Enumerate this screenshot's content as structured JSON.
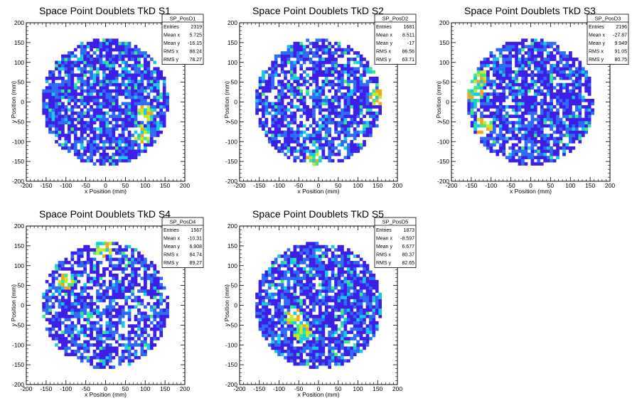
{
  "chart_data": [
    {
      "type": "heatmap",
      "title": "Space Point Doublets TkD S1",
      "xlabel": "x Position (mm)",
      "ylabel": "y Position (mm)",
      "xlim": [
        -200,
        200
      ],
      "ylim": [
        -200,
        200
      ],
      "xticks": [
        "-200",
        "-150",
        "-100",
        "-50",
        "0",
        "50",
        "100",
        "150",
        "200"
      ],
      "yticks": [
        "-200",
        "-150",
        "-100",
        "-50",
        "0",
        "50",
        "100",
        "150",
        "200"
      ],
      "radius": 160,
      "bins": 40,
      "seed": 11,
      "fill": 0.82,
      "hotspots": [
        [
          100,
          -30
        ],
        [
          90,
          -80
        ]
      ],
      "stats": {
        "name": "SP_PosD1",
        "rows": [
          [
            "Entries",
            "2319"
          ],
          [
            "Mean x",
            "5.725"
          ],
          [
            "Mean y",
            "-16.15"
          ],
          [
            "RMS x",
            "88.24"
          ],
          [
            "RMS y",
            "78.27"
          ]
        ]
      }
    },
    {
      "type": "heatmap",
      "title": "Space Point Doublets TkD S2",
      "xlabel": "x Position (mm)",
      "ylabel": "y Position (mm)",
      "xlim": [
        -200,
        200
      ],
      "ylim": [
        -200,
        200
      ],
      "xticks": [
        "-200",
        "-150",
        "-100",
        "-50",
        "0",
        "50",
        "100",
        "150",
        "200"
      ],
      "yticks": [
        "-200",
        "-150",
        "-100",
        "-50",
        "0",
        "50",
        "100",
        "150",
        "200"
      ],
      "radius": 160,
      "bins": 40,
      "seed": 23,
      "fill": 0.72,
      "hotspots": [
        [
          -10,
          -150
        ],
        [
          150,
          10
        ]
      ],
      "stats": {
        "name": "SP_PosD2",
        "rows": [
          [
            "Entries",
            "1681"
          ],
          [
            "Mean x",
            "8.511"
          ],
          [
            "Mean y",
            "-17"
          ],
          [
            "RMS x",
            "86.56"
          ],
          [
            "RMS y",
            "63.71"
          ]
        ]
      }
    },
    {
      "type": "heatmap",
      "title": "Space Point Doublets TkD S3",
      "xlabel": "x Position (mm)",
      "ylabel": "y Position (mm)",
      "xlim": [
        -200,
        200
      ],
      "ylim": [
        -200,
        200
      ],
      "xticks": [
        "-200",
        "-150",
        "-100",
        "-50",
        "0",
        "50",
        "100",
        "150",
        "200"
      ],
      "yticks": [
        "-200",
        "-150",
        "-100",
        "-50",
        "0",
        "50",
        "100",
        "150",
        "200"
      ],
      "radius": 160,
      "bins": 40,
      "seed": 37,
      "fill": 0.78,
      "hotspots": [
        [
          -130,
          60
        ],
        [
          -140,
          20
        ],
        [
          -120,
          -60
        ]
      ],
      "stats": {
        "name": "SP_PosD3",
        "rows": [
          [
            "Entries",
            "2196"
          ],
          [
            "Mean x",
            "-27.87"
          ],
          [
            "Mean y",
            "9.949"
          ],
          [
            "RMS x",
            "91.05"
          ],
          [
            "RMS y",
            "80.75"
          ]
        ]
      }
    },
    {
      "type": "heatmap",
      "title": "Space Point Doublets TkD S4",
      "xlabel": "x Position (mm)",
      "ylabel": "y Position (mm)",
      "xlim": [
        -200,
        200
      ],
      "ylim": [
        -200,
        200
      ],
      "xticks": [
        "-200",
        "-150",
        "-100",
        "-50",
        "0",
        "50",
        "100",
        "150",
        "200"
      ],
      "yticks": [
        "-200",
        "-150",
        "-100",
        "-50",
        "0",
        "50",
        "100",
        "150",
        "200"
      ],
      "radius": 160,
      "bins": 40,
      "seed": 41,
      "fill": 0.7,
      "hotspots": [
        [
          -5,
          145
        ],
        [
          -100,
          60
        ]
      ],
      "stats": {
        "name": "SP_PosD4",
        "rows": [
          [
            "Entries",
            "1567"
          ],
          [
            "Mean x",
            "-10.31"
          ],
          [
            "Mean y",
            "6.908"
          ],
          [
            "RMS x",
            "84.74"
          ],
          [
            "RMS y",
            "89.27"
          ]
        ]
      }
    },
    {
      "type": "heatmap",
      "title": "Space Point Doublets TkD S5",
      "xlabel": "x Position (mm)",
      "ylabel": "y Position (mm)",
      "xlim": [
        -200,
        200
      ],
      "ylim": [
        -200,
        200
      ],
      "xticks": [
        "-200",
        "-150",
        "-100",
        "-50",
        "0",
        "50",
        "100",
        "150",
        "200"
      ],
      "yticks": [
        "-200",
        "-150",
        "-100",
        "-50",
        "0",
        "50",
        "100",
        "150",
        "200"
      ],
      "radius": 160,
      "bins": 40,
      "seed": 53,
      "fill": 0.8,
      "hotspots": [
        [
          -40,
          -70
        ],
        [
          -60,
          -30
        ]
      ],
      "stats": {
        "name": "SP_PosD5",
        "rows": [
          [
            "Entries",
            "1873"
          ],
          [
            "Mean x",
            "-8.597"
          ],
          [
            "Mean y",
            "6.677"
          ],
          [
            "RMS x",
            "80.37"
          ],
          [
            "RMS y",
            "82.65"
          ]
        ]
      }
    }
  ],
  "palette": [
    "#3c1ee6",
    "#2f6cf5",
    "#18c8e8",
    "#3ce88c",
    "#c8e828",
    "#f2a81e",
    "#e8321a"
  ]
}
